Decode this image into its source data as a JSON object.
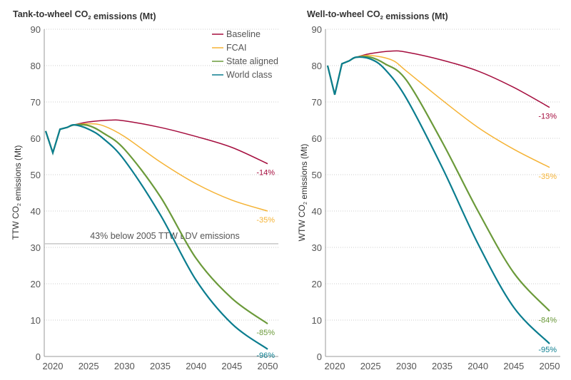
{
  "chart_data": [
    {
      "type": "line",
      "title": "Tank-to-wheel CO2 emissions (Mt)",
      "ylabel": "TTW CO2 emissions (Mt)",
      "xlabel": "",
      "xticks": [
        2020,
        2025,
        2030,
        2035,
        2040,
        2045,
        2050
      ],
      "yticks": [
        0,
        10,
        20,
        30,
        40,
        50,
        60,
        70,
        80,
        90
      ],
      "ylim": [
        0,
        90
      ],
      "xlim": [
        2019,
        2050
      ],
      "grid": "horizontal dotted",
      "legend": "top-right",
      "threshold": {
        "value": 31,
        "label": "43% below 2005 TTW LDV emissions"
      },
      "series": [
        {
          "name": "Baseline",
          "color": "#a50d3e",
          "end_label": "-14%",
          "x": [
            2019,
            2020,
            2021,
            2022,
            2023,
            2025,
            2028,
            2030,
            2035,
            2040,
            2045,
            2050
          ],
          "y": [
            62,
            56,
            62.5,
            63,
            63.7,
            64.5,
            65,
            64.8,
            63,
            60.5,
            57.5,
            53
          ]
        },
        {
          "name": "FCAI",
          "color": "#f5b335",
          "end_label": "-35%",
          "x": [
            2019,
            2020,
            2021,
            2022,
            2023,
            2025,
            2027,
            2030,
            2035,
            2040,
            2045,
            2050
          ],
          "y": [
            62,
            56,
            62.5,
            63,
            63.7,
            64,
            63.5,
            60.5,
            53.5,
            47.5,
            43,
            40
          ]
        },
        {
          "name": "State aligned",
          "color": "#6b9a3a",
          "end_label": "-85%",
          "x": [
            2019,
            2020,
            2021,
            2022,
            2023,
            2025,
            2027,
            2030,
            2035,
            2040,
            2045,
            2050
          ],
          "y": [
            62,
            56,
            62.5,
            63,
            63.7,
            63.5,
            61.5,
            57,
            44,
            27,
            16,
            9
          ]
        },
        {
          "name": "World class",
          "color": "#0b7d8f",
          "end_label": "-96%",
          "x": [
            2019,
            2020,
            2021,
            2022,
            2023,
            2025,
            2027,
            2030,
            2035,
            2040,
            2045,
            2050
          ],
          "y": [
            62,
            56,
            62.5,
            63,
            63.7,
            62.5,
            60,
            54,
            39,
            21,
            9,
            2
          ]
        }
      ]
    },
    {
      "type": "line",
      "title": "Well-to-wheel CO2 emissions (Mt)",
      "ylabel": "WTW CO2 emissions (Mt)",
      "xlabel": "",
      "xticks": [
        2020,
        2025,
        2030,
        2035,
        2040,
        2045,
        2050
      ],
      "yticks": [
        0,
        10,
        20,
        30,
        40,
        50,
        60,
        70,
        80,
        90
      ],
      "ylim": [
        0,
        90
      ],
      "xlim": [
        2019,
        2050
      ],
      "grid": "horizontal dotted",
      "series": [
        {
          "name": "Baseline",
          "color": "#a50d3e",
          "end_label": "-13%",
          "x": [
            2019,
            2020,
            2021,
            2022,
            2023,
            2025,
            2028,
            2030,
            2035,
            2040,
            2045,
            2050
          ],
          "y": [
            80,
            72,
            80.5,
            81.3,
            82.3,
            83.3,
            84,
            83.7,
            81.5,
            78.5,
            74,
            68.5
          ]
        },
        {
          "name": "FCAI",
          "color": "#f5b335",
          "end_label": "-35%",
          "x": [
            2019,
            2020,
            2021,
            2022,
            2023,
            2025,
            2028,
            2030,
            2035,
            2040,
            2045,
            2050
          ],
          "y": [
            80,
            72,
            80.5,
            81.3,
            82.3,
            82.8,
            81.5,
            78.5,
            70.5,
            63,
            57,
            52
          ]
        },
        {
          "name": "State aligned",
          "color": "#6b9a3a",
          "end_label": "-84%",
          "x": [
            2019,
            2020,
            2021,
            2022,
            2023,
            2025,
            2027,
            2030,
            2035,
            2040,
            2045,
            2050
          ],
          "y": [
            80,
            72,
            80.5,
            81.3,
            82.3,
            82.3,
            80.5,
            76,
            59,
            40,
            23,
            12.5
          ]
        },
        {
          "name": "World class",
          "color": "#0b7d8f",
          "end_label": "-95%",
          "x": [
            2019,
            2020,
            2021,
            2022,
            2023,
            2025,
            2027,
            2030,
            2035,
            2040,
            2045,
            2050
          ],
          "y": [
            80,
            72,
            80.5,
            81.3,
            82.3,
            81.8,
            79,
            71,
            52,
            31,
            13.5,
            3.5
          ]
        }
      ]
    }
  ]
}
